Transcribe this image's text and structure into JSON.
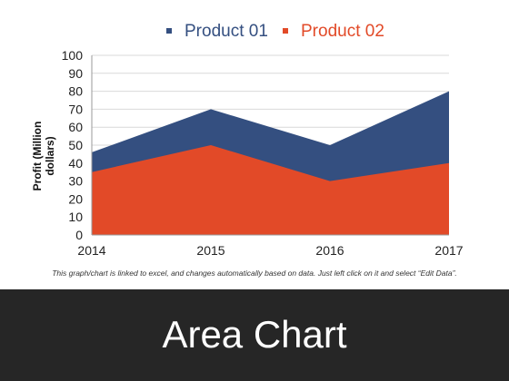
{
  "slide": {
    "title": "Area Chart",
    "footnote": "This graph/chart is linked to excel, and changes automatically based on data. Just left click on it and select “Edit Data”."
  },
  "chart_data": {
    "type": "area",
    "title": "",
    "x": [
      "2014",
      "2015",
      "2016",
      "2017"
    ],
    "series": [
      {
        "name": "Product 01",
        "color": "#344f80",
        "values": [
          46,
          70,
          50,
          80
        ]
      },
      {
        "name": "Product 02",
        "color": "#e24a28",
        "values": [
          35,
          50,
          30,
          40
        ]
      }
    ],
    "xlabel": "",
    "ylabel": "Profit  (Million dollars)",
    "ylabel_lines": [
      "Profit  (Million",
      "dollars)"
    ],
    "ylim": [
      0,
      100
    ],
    "yticks": [
      0,
      10,
      20,
      30,
      40,
      50,
      60,
      70,
      80,
      90,
      100
    ],
    "grid": true,
    "legend": "top-center",
    "overlay": true
  }
}
